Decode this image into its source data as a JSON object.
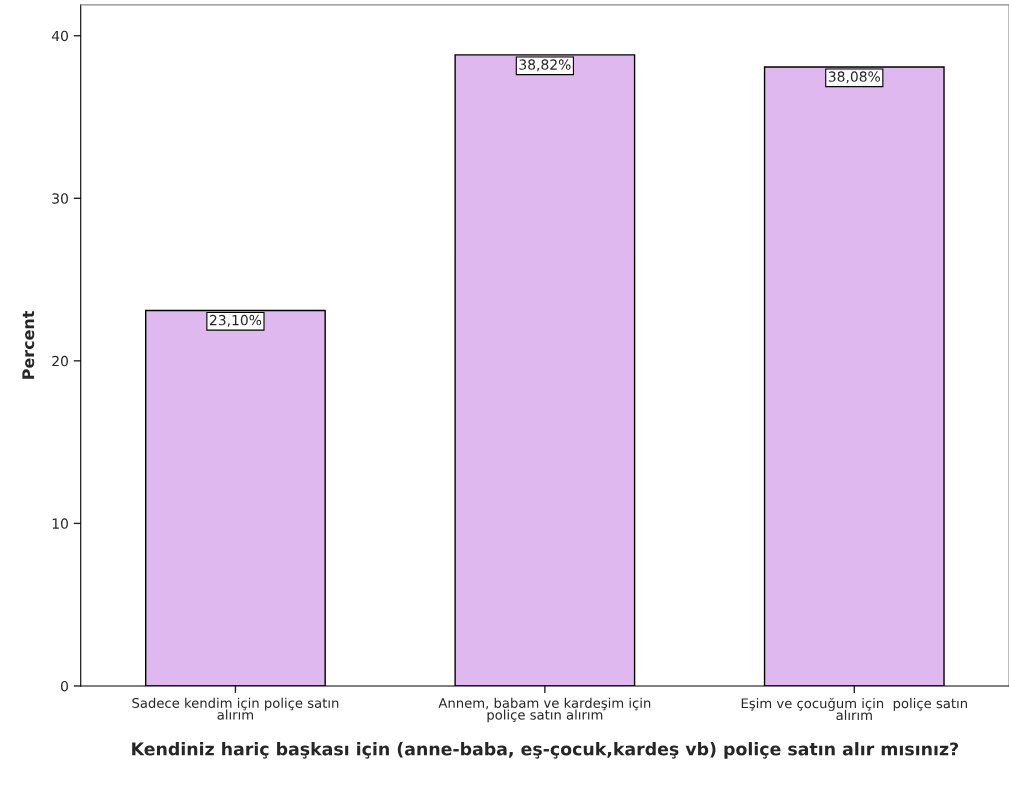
{
  "chart_data": {
    "type": "bar",
    "categories": [
      "Sadece kendim için poliçe satın\nalırım",
      "Annem, babam ve kardeşim için\npoliçe satın alırım",
      "Eşim ve çocuğum için  poliçe satın\nalırım"
    ],
    "values": [
      23.1,
      38.82,
      38.08
    ],
    "value_labels": [
      "23,10%",
      "38,82%",
      "38,08%"
    ],
    "color": "#dfb8f0",
    "xlabel": "Kendiniz hariç başkası için (anne-baba, eş-çocuk,kardeş vb) poliçe satın alır mısınız?",
    "ylabel": "Percent",
    "ylim": [
      0,
      41.9
    ],
    "yticks": [
      0,
      10,
      20,
      30,
      40
    ],
    "grid": false,
    "legend": false
  }
}
